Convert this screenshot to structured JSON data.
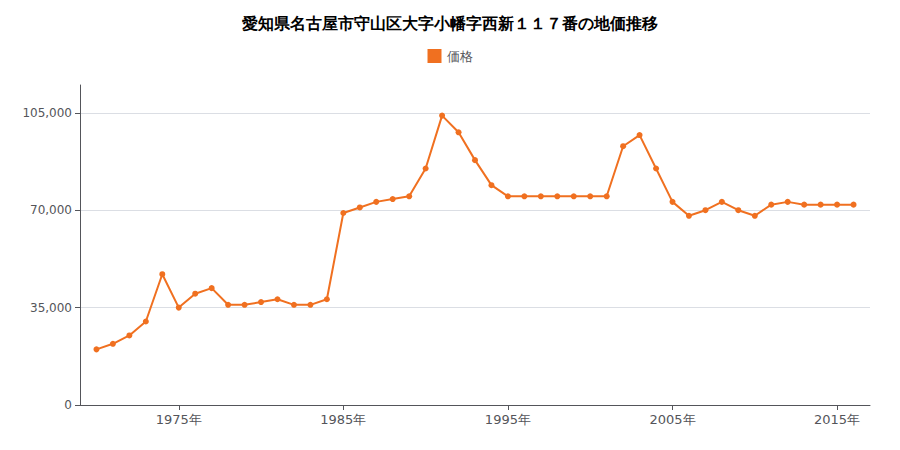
{
  "chart_data": {
    "type": "line",
    "title": "愛知県名古屋市守山区大字小幡字西新１１７番の地価推移",
    "x": [
      1970,
      1971,
      1972,
      1973,
      1974,
      1975,
      1976,
      1977,
      1978,
      1979,
      1980,
      1981,
      1982,
      1983,
      1984,
      1985,
      1986,
      1987,
      1988,
      1989,
      1990,
      1991,
      1992,
      1993,
      1994,
      1995,
      1996,
      1997,
      1998,
      1999,
      2000,
      2001,
      2002,
      2003,
      2004,
      2005,
      2006,
      2007,
      2008,
      2009,
      2010,
      2011,
      2012,
      2013,
      2014,
      2015,
      2016
    ],
    "series": [
      {
        "name": "価格",
        "color": "#f07020",
        "marker": "circle",
        "values": [
          20000,
          22000,
          25000,
          30000,
          47000,
          35000,
          40000,
          42000,
          36000,
          36000,
          37000,
          38000,
          36000,
          36000,
          38000,
          69000,
          71000,
          73000,
          74000,
          75000,
          85000,
          104000,
          98000,
          88000,
          79000,
          75000,
          75000,
          75000,
          75000,
          75000,
          75000,
          75000,
          93000,
          97000,
          85000,
          73000,
          68000,
          70000,
          73000,
          70000,
          68000,
          72000,
          73000,
          72000,
          72000,
          72000,
          72000
        ]
      }
    ],
    "xlim": [
      1969,
      2017
    ],
    "xticks": [
      {
        "value": 1975,
        "label": "1975年"
      },
      {
        "value": 1985,
        "label": "1985年"
      },
      {
        "value": 1995,
        "label": "1995年"
      },
      {
        "value": 2005,
        "label": "2005年"
      },
      {
        "value": 2015,
        "label": "2015年"
      }
    ],
    "ylim": [
      0,
      115000
    ],
    "yticks": [
      0,
      {
        "value": 35000,
        "label": "35,000"
      },
      {
        "value": 70000,
        "label": "70,000"
      },
      {
        "value": 105000,
        "label": "105,000"
      }
    ],
    "grid": true,
    "legend": "top"
  }
}
